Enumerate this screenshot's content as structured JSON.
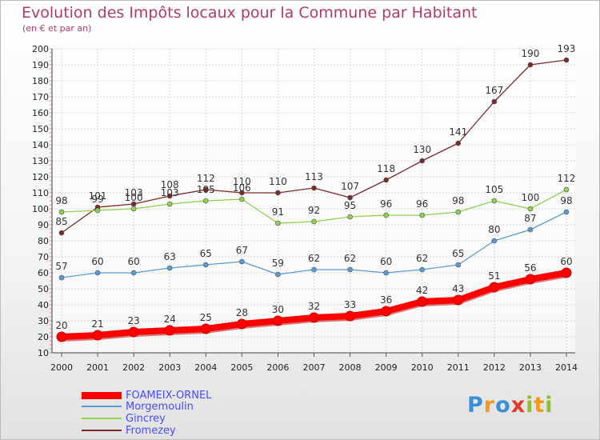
{
  "chart_data": {
    "type": "line",
    "title": "Evolution des Impôts locaux pour la Commune par Habitant",
    "subtitle": "(en € et par an)",
    "x": [
      "2000",
      "2001",
      "2002",
      "2003",
      "2004",
      "2005",
      "2006",
      "2007",
      "2008",
      "2009",
      "2010",
      "2011",
      "2012",
      "2013",
      "2014"
    ],
    "ylim": [
      10,
      200
    ],
    "yticks": [
      "10",
      "20",
      "30",
      "40",
      "50",
      "60",
      "70",
      "80",
      "90",
      "100",
      "110",
      "120",
      "130",
      "140",
      "150",
      "160",
      "170",
      "180",
      "190",
      "200"
    ],
    "grid": true,
    "legend_position": "bottom-left",
    "series": [
      {
        "name": "FOAMEIX-ORNEL",
        "color": "#ff0000",
        "values": [
          20,
          21,
          23,
          24,
          25,
          28,
          30,
          32,
          33,
          36,
          42,
          43,
          51,
          56,
          60
        ]
      },
      {
        "name": "Morgemoulin",
        "color": "#5b9bd5",
        "values": [
          57,
          60,
          60,
          63,
          65,
          67,
          59,
          62,
          62,
          60,
          62,
          65,
          80,
          87,
          98
        ]
      },
      {
        "name": "Gincrey",
        "color": "#8fd14f",
        "values": [
          98,
          99,
          100,
          103,
          105,
          106,
          91,
          92,
          95,
          96,
          96,
          98,
          105,
          100,
          112
        ]
      },
      {
        "name": "Fromezey",
        "color": "#7b2a2a",
        "values": [
          85,
          101,
          103,
          108,
          112,
          110,
          110,
          113,
          107,
          118,
          130,
          141,
          167,
          190,
          193
        ]
      }
    ],
    "data_labels": {
      "FOAMEIX-ORNEL": [
        "20",
        "21",
        "23",
        "24",
        "25",
        "28",
        "30",
        "32",
        "33",
        "36",
        "42",
        "43",
        "51",
        "56",
        "60"
      ],
      "Morgemoulin": [
        "57",
        "60",
        "60",
        "63",
        "65",
        "67",
        "59",
        "62",
        "62",
        "60",
        "62",
        "65",
        "80",
        "87",
        "98"
      ],
      "Gincrey": [
        "98",
        "99",
        "100",
        "103",
        "105",
        "106",
        "91",
        "92",
        "95",
        "96",
        "96",
        "98",
        "105",
        "100",
        "112"
      ],
      "Fromezey": [
        "85",
        "101",
        "103",
        "108",
        "112",
        "110",
        "110",
        "113",
        "107",
        "118",
        "130",
        "141",
        "167",
        "190",
        "193"
      ]
    }
  },
  "logo": {
    "text": "Proxiti",
    "letters": [
      "P",
      "r",
      "o",
      "x",
      "i",
      "t",
      "i"
    ],
    "colors": [
      "#3a8fd6",
      "#f09a1e",
      "#3a8fd6",
      "#e23a2a",
      "#8fbf2a",
      "#f09a1e",
      "#8fbf2a"
    ]
  }
}
